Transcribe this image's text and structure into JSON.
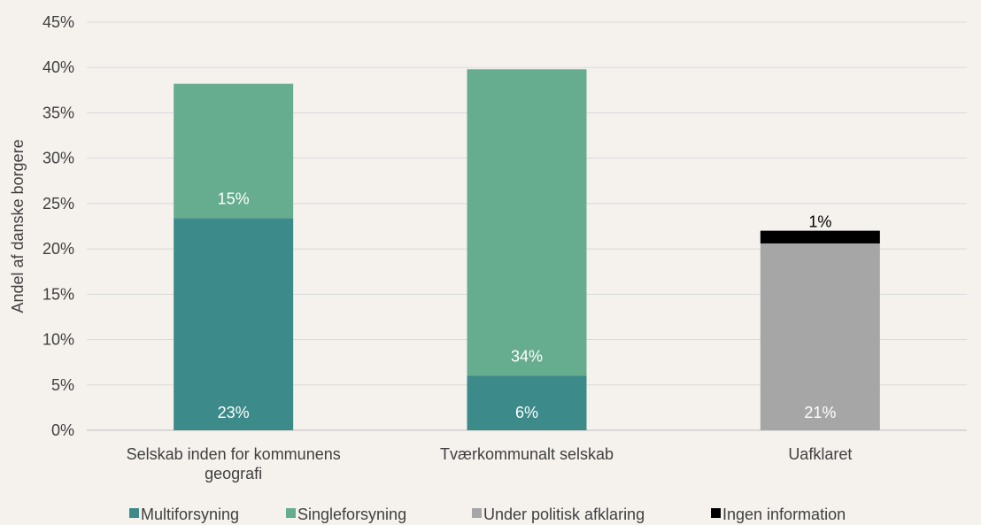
{
  "chart_data": {
    "type": "bar",
    "stacked": true,
    "ylabel": "Andel af danske borgere",
    "ylim": [
      0,
      45
    ],
    "yticks": [
      "0%",
      "5%",
      "10%",
      "15%",
      "20%",
      "25%",
      "30%",
      "35%",
      "40%",
      "45%"
    ],
    "categories": [
      [
        "Selskab inden for kommunens",
        "geografi"
      ],
      [
        "Tværkommunalt selskab"
      ],
      [
        "Uafklaret"
      ]
    ],
    "series": [
      {
        "name": "Multiforsyning",
        "color": "#3c8a89",
        "values": [
          23.4,
          6.0,
          0
        ],
        "labels": [
          "23%",
          "6%",
          ""
        ]
      },
      {
        "name": "Singleforsyning",
        "color": "#66ac8f",
        "values": [
          14.8,
          33.8,
          0
        ],
        "labels": [
          "15%",
          "34%",
          ""
        ]
      },
      {
        "name": "Under politisk afklaring",
        "color": "#a6a6a6",
        "values": [
          0,
          0,
          20.6
        ],
        "labels": [
          "",
          "",
          "21%"
        ]
      },
      {
        "name": "Ingen information",
        "color": "#000000",
        "values": [
          0,
          0,
          1.4
        ],
        "labels": [
          "",
          "",
          "1%"
        ]
      }
    ],
    "grid": true,
    "legend_position": "bottom"
  }
}
